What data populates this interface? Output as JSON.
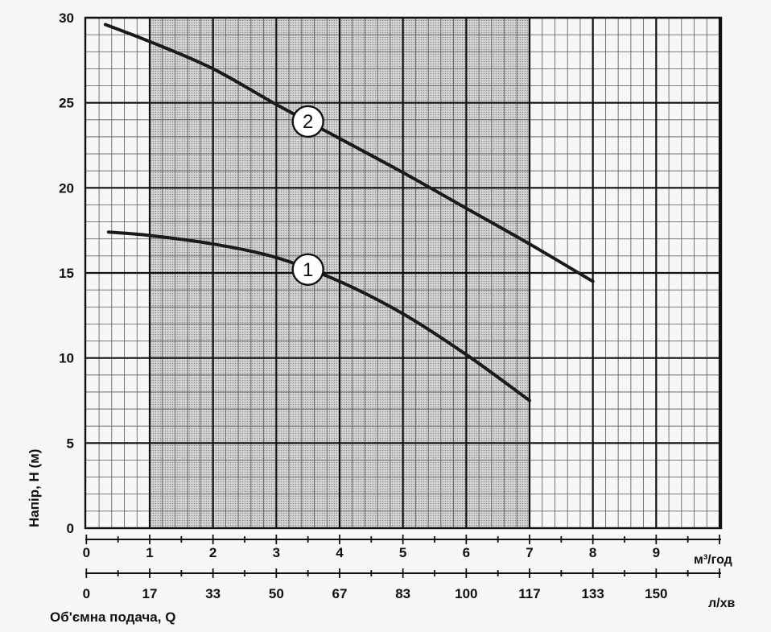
{
  "chart_data": {
    "type": "line",
    "ylabel": "Напір, Н (м)",
    "xlabel": "Об'ємна подача, Q",
    "x_unit": "м³/год",
    "x2_unit": "л/хв",
    "xlim": [
      0,
      10
    ],
    "ylim": [
      0,
      30
    ],
    "y_ticks": [
      "0",
      "5",
      "10",
      "15",
      "20",
      "25",
      "30"
    ],
    "x_ticks": [
      "0",
      "1",
      "2",
      "3",
      "4",
      "5",
      "6",
      "7",
      "8",
      "9"
    ],
    "x2_ticks": [
      "0",
      "17",
      "33",
      "50",
      "67",
      "83",
      "100",
      "117",
      "133",
      "150"
    ],
    "grid": true,
    "shaded_range_x": [
      1,
      7
    ],
    "series": [
      {
        "name": "1",
        "x": [
          0.35,
          1,
          2,
          3,
          4,
          5,
          6,
          7
        ],
        "y": [
          17.4,
          17.2,
          16.7,
          15.9,
          14.5,
          12.6,
          10.2,
          7.5
        ]
      },
      {
        "name": "2",
        "x": [
          0.3,
          1,
          2,
          3,
          4,
          5,
          6,
          7,
          8
        ],
        "y": [
          29.6,
          28.6,
          27.0,
          24.9,
          22.9,
          20.9,
          18.8,
          16.7,
          14.5
        ]
      }
    ],
    "marker_positions": [
      {
        "series": "1",
        "x": 3.5,
        "y": 15.2
      },
      {
        "series": "2",
        "x": 3.5,
        "y": 23.9
      }
    ]
  }
}
